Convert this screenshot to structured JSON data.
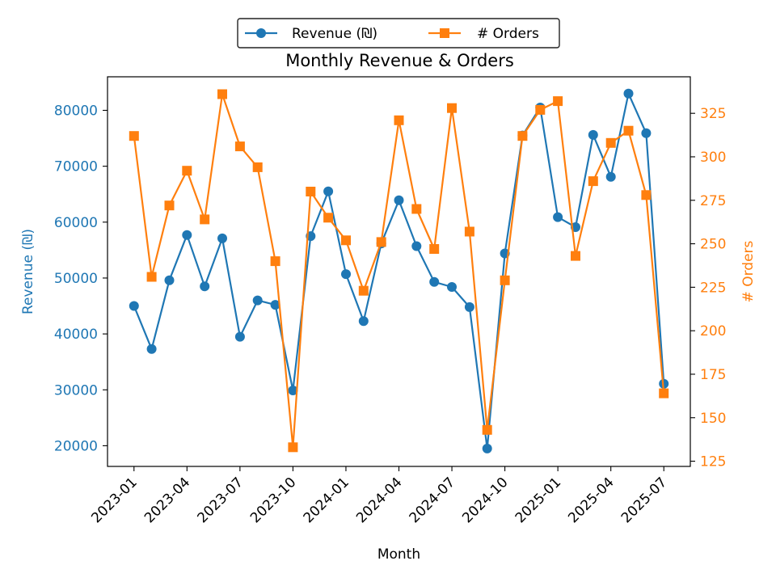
{
  "chart_data": {
    "type": "line",
    "title": "Monthly Revenue & Orders",
    "xlabel": "Month",
    "ylabel_left": "Revenue (₪)",
    "ylabel_right": "# Orders",
    "x_ticks": [
      "2023-01",
      "2023-04",
      "2023-07",
      "2023-10",
      "2024-01",
      "2024-04",
      "2024-07",
      "2024-10",
      "2025-01",
      "2025-04",
      "2025-07"
    ],
    "y_left_ticks": [
      20000,
      30000,
      40000,
      50000,
      60000,
      70000,
      80000
    ],
    "y_right_ticks": [
      125,
      150,
      175,
      200,
      225,
      250,
      275,
      300,
      325
    ],
    "y_left_lim": [
      16300,
      86000
    ],
    "y_right_lim": [
      122,
      346
    ],
    "grid": false,
    "legend_position": "top-center",
    "x": [
      "2023-01",
      "2023-02",
      "2023-03",
      "2023-04",
      "2023-05",
      "2023-06",
      "2023-07",
      "2023-08",
      "2023-09",
      "2023-10",
      "2023-11",
      "2023-12",
      "2024-01",
      "2024-02",
      "2024-03",
      "2024-04",
      "2024-05",
      "2024-06",
      "2024-07",
      "2024-08",
      "2024-09",
      "2024-10",
      "2024-11",
      "2024-12",
      "2025-01",
      "2025-02",
      "2025-03",
      "2025-04",
      "2025-05",
      "2025-06",
      "2025-07"
    ],
    "series": [
      {
        "name": "Revenue (₪)",
        "axis": "left",
        "color": "#1f77b4",
        "marker": "circle",
        "values": [
          45000,
          37300,
          49600,
          57700,
          48500,
          57100,
          39500,
          46000,
          45200,
          29900,
          57500,
          65500,
          50700,
          42300,
          56200,
          63900,
          55700,
          49300,
          48400,
          44800,
          19500,
          54400,
          75500,
          80500,
          60900,
          59100,
          75600,
          68100,
          83000,
          75900,
          31100
        ]
      },
      {
        "name": "# Orders",
        "axis": "right",
        "color": "#ff7f0e",
        "marker": "square",
        "values": [
          312,
          231,
          272,
          292,
          264,
          336,
          306,
          294,
          240,
          133,
          280,
          265,
          252,
          223,
          251,
          321,
          270,
          247,
          328,
          257,
          143,
          229,
          312,
          327,
          332,
          243,
          286,
          308,
          315,
          278,
          164
        ]
      }
    ]
  }
}
